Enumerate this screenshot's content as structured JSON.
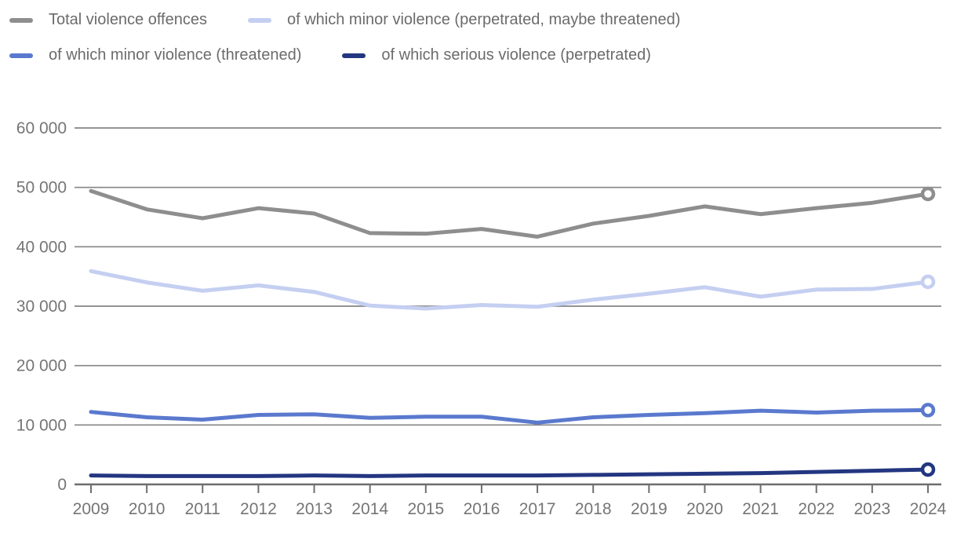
{
  "chart_data": {
    "type": "line",
    "x": [
      "2009",
      "2010",
      "2011",
      "2012",
      "2013",
      "2014",
      "2015",
      "2016",
      "2017",
      "2018",
      "2019",
      "2020",
      "2021",
      "2022",
      "2023",
      "2024"
    ],
    "series": [
      {
        "name": "Total violence offences",
        "color": "#8e8e8e",
        "values": [
          49400,
          46300,
          44800,
          46500,
          45600,
          42300,
          42200,
          43000,
          41700,
          43900,
          45200,
          46800,
          45500,
          46500,
          47400,
          48900
        ]
      },
      {
        "name": "of which minor violence (perpetrated, maybe threatened)",
        "color": "#c4cff1",
        "values": [
          35900,
          34000,
          32600,
          33500,
          32400,
          30100,
          29600,
          30200,
          29900,
          31100,
          32100,
          33200,
          31600,
          32800,
          32900,
          34100
        ]
      },
      {
        "name": "of which minor violence (threatened)",
        "color": "#5a79ce",
        "values": [
          12200,
          11300,
          10900,
          11700,
          11800,
          11200,
          11400,
          11400,
          10400,
          11300,
          11700,
          12000,
          12400,
          12100,
          12400,
          12500
        ]
      },
      {
        "name": "of which serious violence (perpetrated)",
        "color": "#233680",
        "values": [
          1500,
          1400,
          1400,
          1400,
          1500,
          1400,
          1500,
          1500,
          1500,
          1600,
          1700,
          1800,
          1900,
          2100,
          2300,
          2500
        ]
      }
    ],
    "ylim": [
      0,
      60000
    ],
    "ytick_step": 10000,
    "ytick_labels": [
      "0",
      "10 000",
      "20 000",
      "30 000",
      "40 000",
      "50 000",
      "60 000"
    ],
    "grid": true,
    "legend_position": "top",
    "legend_rows": [
      [
        0,
        1
      ],
      [
        2,
        3
      ]
    ],
    "end_marker": "open-circle"
  },
  "style": {
    "axis_text_color": "#757575",
    "grid_color": "#858585",
    "axis_line_color": "#6e6e6e",
    "legend_text_color": "#6b6b6b"
  }
}
